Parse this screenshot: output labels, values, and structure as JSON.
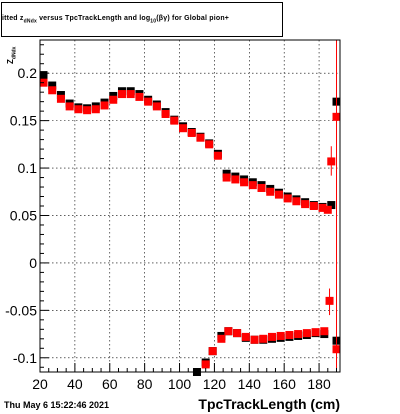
{
  "title": {
    "prefix": "itted  z",
    "subscript": "dNdx",
    "middle": " versus TpcTrackLength and log",
    "subscript2": "10",
    "suffix": "(βγ) for Global pion+"
  },
  "ylabel": {
    "main": "Z",
    "subscript": "dNdx"
  },
  "xlabel": "TpcTrackLength (cm)",
  "date": "Thu May  6 15:22:46 2021",
  "colors": {
    "black_series": "#000000",
    "red_series": "#ff0000",
    "axis": "#000000"
  },
  "chart_data": {
    "type": "scatter",
    "xlim": [
      20,
      192
    ],
    "ylim": [
      -0.115,
      0.235
    ],
    "x_ticks": [
      20,
      40,
      60,
      80,
      100,
      120,
      140,
      160,
      180
    ],
    "x_tick_labels": [
      "20",
      "40",
      "60",
      "80",
      "100",
      "120",
      "140",
      "160",
      "180"
    ],
    "y_ticks": [
      -0.1,
      -0.05,
      0,
      0.05,
      0.1,
      0.15,
      0.2
    ],
    "y_tick_labels": [
      "-0.1",
      "-0.05",
      "0",
      "0.05",
      "0.1",
      "0.15",
      "0.2"
    ],
    "grid": true,
    "series": [
      {
        "color": "black",
        "points": [
          [
            22,
            0.198
          ],
          [
            27,
            0.187
          ],
          [
            32,
            0.177
          ],
          [
            37,
            0.168
          ],
          [
            42,
            0.164
          ],
          [
            47,
            0.163
          ],
          [
            52,
            0.165
          ],
          [
            57,
            0.169
          ],
          [
            62,
            0.176
          ],
          [
            67,
            0.181
          ],
          [
            72,
            0.181
          ],
          [
            77,
            0.178
          ],
          [
            82,
            0.172
          ],
          [
            87,
            0.167
          ],
          [
            92,
            0.159
          ],
          [
            97,
            0.151
          ],
          [
            102,
            0.144
          ],
          [
            107,
            0.138
          ],
          [
            112,
            0.133
          ],
          [
            117,
            0.126
          ],
          [
            122,
            0.115
          ],
          [
            127,
            0.094
          ],
          [
            132,
            0.091
          ],
          [
            137,
            0.088
          ],
          [
            142,
            0.085
          ],
          [
            147,
            0.082
          ],
          [
            152,
            0.078
          ],
          [
            157,
            0.074
          ],
          [
            162,
            0.07
          ],
          [
            167,
            0.067
          ],
          [
            172,
            0.064
          ],
          [
            177,
            0.061
          ],
          [
            182,
            0.059
          ],
          [
            187,
            0.061
          ],
          [
            190,
            0.17
          ],
          [
            110,
            -0.115
          ],
          [
            115,
            -0.105
          ],
          [
            119,
            -0.093
          ],
          [
            124,
            -0.077
          ],
          [
            128,
            -0.072
          ],
          [
            133,
            -0.074
          ],
          [
            138,
            -0.079
          ],
          [
            143,
            -0.081
          ],
          [
            148,
            -0.081
          ],
          [
            153,
            -0.08
          ],
          [
            158,
            -0.079
          ],
          [
            163,
            -0.078
          ],
          [
            168,
            -0.077
          ],
          [
            173,
            -0.076
          ],
          [
            178,
            -0.074
          ],
          [
            183,
            -0.075
          ],
          [
            190,
            -0.082
          ]
        ]
      },
      {
        "color": "red",
        "points": [
          [
            22,
            0.19
          ],
          [
            27,
            0.182
          ],
          [
            32,
            0.173
          ],
          [
            37,
            0.165
          ],
          [
            42,
            0.162
          ],
          [
            47,
            0.161
          ],
          [
            52,
            0.162
          ],
          [
            57,
            0.166
          ],
          [
            62,
            0.172
          ],
          [
            67,
            0.178
          ],
          [
            72,
            0.178
          ],
          [
            77,
            0.175
          ],
          [
            82,
            0.17
          ],
          [
            87,
            0.165
          ],
          [
            92,
            0.157
          ],
          [
            97,
            0.15
          ],
          [
            102,
            0.142
          ],
          [
            107,
            0.137
          ],
          [
            112,
            0.132
          ],
          [
            117,
            0.125
          ],
          [
            122,
            0.113
          ],
          [
            127,
            0.09
          ],
          [
            132,
            0.088
          ],
          [
            137,
            0.085
          ],
          [
            142,
            0.082
          ],
          [
            147,
            0.079
          ],
          [
            152,
            0.075
          ],
          [
            157,
            0.072
          ],
          [
            162,
            0.068
          ],
          [
            167,
            0.065
          ],
          [
            172,
            0.062
          ],
          [
            177,
            0.06
          ],
          [
            182,
            0.058
          ],
          [
            185,
            0.056
          ],
          [
            187,
            0.107
          ],
          [
            190,
            0.154
          ],
          [
            115,
            -0.107
          ],
          [
            119,
            -0.093
          ],
          [
            124,
            -0.08
          ],
          [
            128,
            -0.072
          ],
          [
            133,
            -0.074
          ],
          [
            138,
            -0.078
          ],
          [
            143,
            -0.081
          ],
          [
            148,
            -0.08
          ],
          [
            153,
            -0.078
          ],
          [
            158,
            -0.077
          ],
          [
            163,
            -0.076
          ],
          [
            168,
            -0.075
          ],
          [
            173,
            -0.074
          ],
          [
            178,
            -0.073
          ],
          [
            183,
            -0.072
          ],
          [
            186,
            -0.04
          ],
          [
            190,
            -0.091
          ]
        ]
      }
    ]
  }
}
